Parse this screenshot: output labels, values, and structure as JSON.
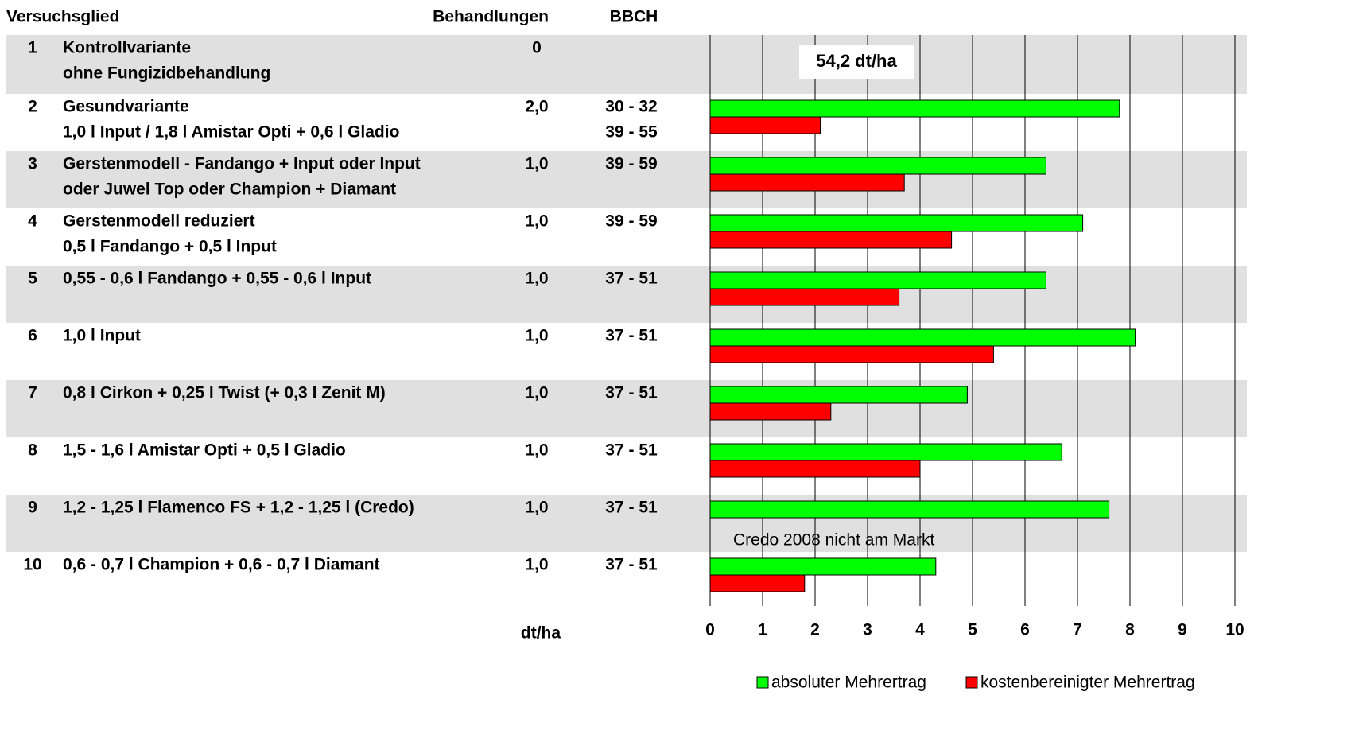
{
  "table": {
    "header": [
      "Versuchsglied",
      "Behandlungen",
      "BBCH"
    ],
    "rows": [
      {
        "nr": "1",
        "lines": [
          "Kontrollvariante",
          "ohne Fungizidbehandlung"
        ],
        "behandlungen": "0",
        "bbch": []
      },
      {
        "nr": "2",
        "lines": [
          "Gesundvariante",
          "1,0 l Input / 1,8 l Amistar Opti + 0,6 l Gladio"
        ],
        "behandlungen": "2,0",
        "bbch": [
          "30 - 32",
          "39 - 55"
        ]
      },
      {
        "nr": "3",
        "lines": [
          "Gerstenmodell - Fandango + Input oder Input",
          "oder Juwel Top oder Champion + Diamant"
        ],
        "behandlungen": "1,0",
        "bbch": [
          "39 - 59"
        ]
      },
      {
        "nr": "4",
        "lines": [
          "Gerstenmodell reduziert",
          "0,5 l Fandango + 0,5 l Input"
        ],
        "behandlungen": "1,0",
        "bbch": [
          "39 - 59"
        ]
      },
      {
        "nr": "5",
        "lines": [
          "0,55 - 0,6 l Fandango + 0,55 - 0,6 l Input"
        ],
        "behandlungen": "1,0",
        "bbch": [
          "37 - 51"
        ]
      },
      {
        "nr": "6",
        "lines": [
          "1,0  l Input"
        ],
        "behandlungen": "1,0",
        "bbch": [
          "37 - 51"
        ]
      },
      {
        "nr": "7",
        "lines": [
          "0,8 l Cirkon + 0,25 l Twist (+ 0,3 l Zenit M)"
        ],
        "behandlungen": "1,0",
        "bbch": [
          "37 - 51"
        ]
      },
      {
        "nr": "8",
        "lines": [
          "1,5 - 1,6 l Amistar Opti + 0,5 l Gladio"
        ],
        "behandlungen": "1,0",
        "bbch": [
          "37 - 51"
        ]
      },
      {
        "nr": "9",
        "lines": [
          "1,2 - 1,25 l Flamenco FS + 1,2 - 1,25 l (Credo)"
        ],
        "behandlungen": "1,0",
        "bbch": [
          "37 - 51"
        ]
      },
      {
        "nr": "10",
        "lines": [
          "0,6 - 0,7 l Champion + 0,6 - 0,7 l Diamant"
        ],
        "behandlungen": "1,0",
        "bbch": [
          "37 - 51"
        ]
      }
    ]
  },
  "chart_data": {
    "type": "barh",
    "x_label": "dt/ha",
    "xlim": [
      0,
      10
    ],
    "xticks": [
      0,
      1,
      2,
      3,
      4,
      5,
      6,
      7,
      8,
      9,
      10
    ],
    "grid": true,
    "legend": "bottom-right",
    "annotations": [
      "54,2 dt/ha",
      "Credo 2008 nicht am Markt"
    ],
    "series": [
      {
        "name": "absoluter Mehrertrag",
        "color": "#00ff00",
        "values": [
          null,
          7.8,
          6.4,
          7.1,
          6.4,
          8.1,
          4.9,
          6.7,
          7.6,
          4.3
        ]
      },
      {
        "name": "kostenbereinigter Mehrertrag",
        "color": "#ff0000",
        "values": [
          null,
          2.1,
          3.7,
          4.6,
          3.6,
          5.4,
          2.3,
          4.0,
          null,
          1.8
        ]
      }
    ]
  }
}
